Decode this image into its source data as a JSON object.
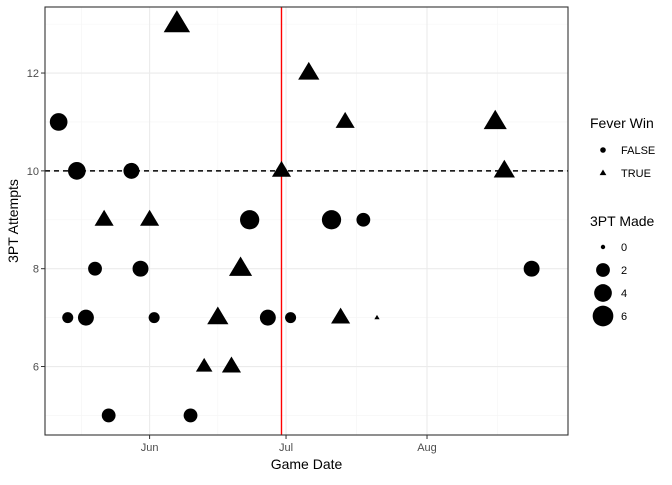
{
  "chart_data": {
    "type": "scatter",
    "title": "",
    "xlabel": "Game Date",
    "ylabel": "3PT Attempts",
    "x_ticks": [
      {
        "date": "2024-06-01",
        "label": "Jun"
      },
      {
        "date": "2024-07-01",
        "label": "Jul"
      },
      {
        "date": "2024-08-01",
        "label": "Aug"
      }
    ],
    "y_ticks": [
      6,
      8,
      10,
      12
    ],
    "xlim": [
      "2024-05-09",
      "2024-09-01"
    ],
    "ylim": [
      4.6,
      13.35
    ],
    "grid": true,
    "reference_lines": [
      {
        "type": "vertical",
        "x": "2024-06-30",
        "color": "#ff0000",
        "style": "solid"
      },
      {
        "type": "horizontal",
        "y": 10,
        "color": "#000000",
        "style": "dashed"
      }
    ],
    "points": [
      {
        "date": "2024-05-12",
        "attempts": 11,
        "made": 4,
        "win": false
      },
      {
        "date": "2024-05-14",
        "attempts": 7,
        "made": 1,
        "win": false
      },
      {
        "date": "2024-05-16",
        "attempts": 10,
        "made": 4,
        "win": false
      },
      {
        "date": "2024-05-18",
        "attempts": 7,
        "made": 3,
        "win": false
      },
      {
        "date": "2024-05-20",
        "attempts": 8,
        "made": 2,
        "win": false
      },
      {
        "date": "2024-05-22",
        "attempts": 9,
        "made": 3,
        "win": true
      },
      {
        "date": "2024-05-23",
        "attempts": 5,
        "made": 2,
        "win": false
      },
      {
        "date": "2024-05-28",
        "attempts": 10,
        "made": 3,
        "win": false
      },
      {
        "date": "2024-05-30",
        "attempts": 8,
        "made": 3,
        "win": false
      },
      {
        "date": "2024-06-01",
        "attempts": 9,
        "made": 3,
        "win": true
      },
      {
        "date": "2024-06-02",
        "attempts": 7,
        "made": 1,
        "win": false
      },
      {
        "date": "2024-06-07",
        "attempts": 13,
        "made": 7,
        "win": true
      },
      {
        "date": "2024-06-10",
        "attempts": 5,
        "made": 2,
        "win": false
      },
      {
        "date": "2024-06-13",
        "attempts": 6,
        "made": 2,
        "win": true
      },
      {
        "date": "2024-06-16",
        "attempts": 7,
        "made": 4,
        "win": true
      },
      {
        "date": "2024-06-19",
        "attempts": 6,
        "made": 3,
        "win": true
      },
      {
        "date": "2024-06-21",
        "attempts": 8,
        "made": 5,
        "win": true
      },
      {
        "date": "2024-06-23",
        "attempts": 9,
        "made": 5,
        "win": false
      },
      {
        "date": "2024-06-27",
        "attempts": 7,
        "made": 3,
        "win": false
      },
      {
        "date": "2024-06-30",
        "attempts": 10,
        "made": 3,
        "win": true
      },
      {
        "date": "2024-07-02",
        "attempts": 7,
        "made": 1,
        "win": false
      },
      {
        "date": "2024-07-06",
        "attempts": 12,
        "made": 4,
        "win": true
      },
      {
        "date": "2024-07-11",
        "attempts": 9,
        "made": 5,
        "win": false
      },
      {
        "date": "2024-07-13",
        "attempts": 7,
        "made": 3,
        "win": true
      },
      {
        "date": "2024-07-14",
        "attempts": 11,
        "made": 3,
        "win": true
      },
      {
        "date": "2024-07-18",
        "attempts": 9,
        "made": 2,
        "win": false
      },
      {
        "date": "2024-07-21",
        "attempts": 7,
        "made": 0,
        "win": true
      },
      {
        "date": "2024-08-16",
        "attempts": 11,
        "made": 5,
        "win": true
      },
      {
        "date": "2024-08-18",
        "attempts": 10,
        "made": 4,
        "win": true
      },
      {
        "date": "2024-08-24",
        "attempts": 8,
        "made": 3,
        "win": false
      }
    ],
    "legend": {
      "placement": "right",
      "shape_title": "Fever Win",
      "shape_entries": [
        {
          "label": "FALSE",
          "shape": "circle"
        },
        {
          "label": "TRUE",
          "shape": "triangle"
        }
      ],
      "size_title": "3PT Made",
      "size_entries": [
        {
          "label": "0",
          "value": 0
        },
        {
          "label": "2",
          "value": 2
        },
        {
          "label": "4",
          "value": 4
        },
        {
          "label": "6",
          "value": 6
        }
      ]
    },
    "colors": {
      "points": "#000000",
      "panel_border": "#333333",
      "grid_major": "#ebebeb",
      "grid_minor": "#f5f5f5",
      "tick_text": "#4d4d4d"
    }
  }
}
